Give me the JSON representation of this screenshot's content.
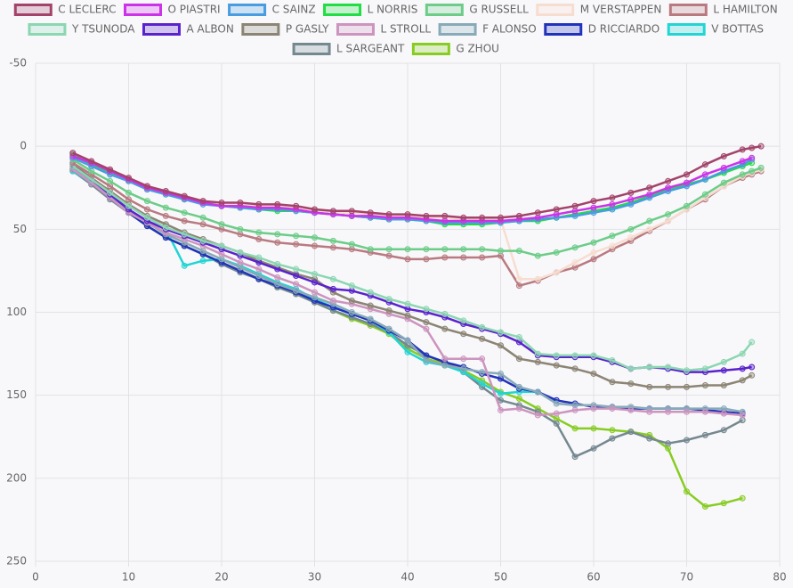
{
  "chart_data": {
    "type": "line",
    "x": [
      4,
      6,
      8,
      10,
      12,
      14,
      16,
      18,
      20,
      22,
      24,
      26,
      28,
      30,
      32,
      34,
      36,
      38,
      40,
      42,
      44,
      46,
      48,
      50,
      52,
      54,
      56,
      58,
      60,
      62,
      64,
      66,
      68,
      70,
      72,
      74,
      76,
      77,
      78
    ],
    "xlim": [
      0,
      80
    ],
    "xticks": [
      0,
      10,
      20,
      30,
      40,
      50,
      60,
      70,
      80
    ],
    "ylim": [
      250,
      -50
    ],
    "yticks": [
      -50,
      0,
      50,
      100,
      150,
      200,
      250
    ],
    "grid": true,
    "legend": "top",
    "series": [
      {
        "name": "C LECLERC",
        "color": "#a3436a",
        "values": [
          4,
          9,
          14,
          19,
          24,
          27,
          30,
          33,
          34,
          34,
          35,
          35,
          36,
          38,
          39,
          39,
          40,
          41,
          41,
          42,
          42,
          43,
          43,
          43,
          42,
          40,
          38,
          36,
          33,
          31,
          28,
          25,
          21,
          17,
          11,
          6,
          2,
          1,
          0
        ]
      },
      {
        "name": "O PIASTRI",
        "color": "#cc33e8",
        "values": [
          6,
          10,
          15,
          20,
          25,
          28,
          31,
          34,
          36,
          36,
          37,
          37,
          38,
          40,
          41,
          42,
          42,
          43,
          43,
          44,
          45,
          45,
          45,
          45,
          44,
          43,
          41,
          39,
          37,
          35,
          32,
          29,
          25,
          22,
          17,
          13,
          9,
          7,
          null
        ]
      },
      {
        "name": "C SAINZ",
        "color": "#4a9ce0",
        "values": [
          7,
          12,
          17,
          21,
          26,
          29,
          32,
          35,
          36,
          37,
          38,
          38,
          39,
          40,
          41,
          42,
          43,
          44,
          44,
          45,
          46,
          46,
          46,
          46,
          45,
          44,
          43,
          42,
          40,
          38,
          35,
          31,
          27,
          24,
          20,
          15,
          11,
          8,
          null
        ]
      },
      {
        "name": "L NORRIS",
        "color": "#22dd44",
        "values": [
          5,
          11,
          16,
          21,
          26,
          29,
          32,
          34,
          36,
          37,
          38,
          39,
          39,
          40,
          41,
          42,
          43,
          44,
          44,
          45,
          47,
          47,
          47,
          46,
          45,
          45,
          43,
          41,
          39,
          37,
          34,
          30,
          26,
          23,
          20,
          16,
          12,
          10,
          null
        ]
      },
      {
        "name": "G RUSSELL",
        "color": "#6ccc88",
        "values": [
          8,
          15,
          21,
          28,
          33,
          37,
          40,
          43,
          47,
          50,
          52,
          53,
          54,
          55,
          57,
          59,
          62,
          62,
          62,
          62,
          62,
          62,
          62,
          63,
          63,
          66,
          64,
          61,
          58,
          54,
          50,
          45,
          41,
          36,
          29,
          22,
          17,
          15,
          13
        ]
      },
      {
        "name": "M VERSTAPPEN",
        "color": "#f7ddd0",
        "values": [
          5,
          10,
          15,
          20,
          25,
          28,
          31,
          33,
          35,
          35,
          36,
          36,
          37,
          39,
          40,
          40,
          41,
          42,
          42,
          43,
          43,
          44,
          44,
          44,
          80,
          80,
          76,
          70,
          64,
          60,
          55,
          50,
          45,
          38,
          31,
          24,
          18,
          16,
          14
        ]
      },
      {
        "name": "L HAMILTON",
        "color": "#b87a80",
        "values": [
          10,
          17,
          24,
          32,
          38,
          42,
          45,
          47,
          50,
          53,
          56,
          58,
          59,
          60,
          61,
          62,
          64,
          66,
          68,
          68,
          67,
          67,
          67,
          66,
          84,
          81,
          76,
          73,
          68,
          62,
          57,
          51,
          45,
          38,
          32,
          24,
          19,
          17,
          15
        ]
      },
      {
        "name": "Y TSUNODA",
        "color": "#8cd6b2",
        "values": [
          12,
          20,
          28,
          36,
          43,
          49,
          53,
          57,
          60,
          64,
          67,
          71,
          74,
          77,
          80,
          84,
          88,
          92,
          95,
          98,
          101,
          105,
          109,
          112,
          115,
          125,
          126,
          126,
          126,
          129,
          134,
          133,
          133,
          135,
          134,
          130,
          125,
          118,
          null
        ]
      },
      {
        "name": "A ALBON",
        "color": "#5a22cc",
        "values": [
          12,
          20,
          29,
          38,
          45,
          50,
          54,
          58,
          62,
          66,
          70,
          74,
          78,
          82,
          86,
          87,
          90,
          94,
          98,
          100,
          103,
          107,
          110,
          113,
          118,
          126,
          127,
          127,
          127,
          130,
          134,
          133,
          134,
          136,
          136,
          135,
          134,
          133,
          null
        ]
      },
      {
        "name": "P GASLY",
        "color": "#8c8474",
        "values": [
          11,
          19,
          27,
          35,
          42,
          47,
          52,
          56,
          60,
          64,
          69,
          73,
          77,
          80,
          88,
          93,
          96,
          99,
          102,
          106,
          110,
          113,
          116,
          120,
          128,
          130,
          132,
          134,
          137,
          142,
          143,
          145,
          145,
          145,
          144,
          144,
          141,
          138,
          null
        ]
      },
      {
        "name": "L STROLL",
        "color": "#cc94be",
        "values": [
          14,
          22,
          31,
          40,
          46,
          52,
          56,
          60,
          65,
          70,
          74,
          79,
          83,
          88,
          93,
          95,
          98,
          101,
          104,
          110,
          128,
          128,
          128,
          159,
          158,
          162,
          161,
          159,
          158,
          158,
          159,
          160,
          160,
          160,
          160,
          161,
          162,
          null,
          null
        ]
      },
      {
        "name": "F ALONSO",
        "color": "#88aab8",
        "values": [
          13,
          21,
          30,
          39,
          46,
          53,
          58,
          63,
          68,
          73,
          78,
          83,
          87,
          91,
          95,
          100,
          104,
          110,
          117,
          129,
          132,
          134,
          136,
          137,
          145,
          148,
          155,
          156,
          156,
          157,
          157,
          158,
          158,
          158,
          158,
          158,
          160,
          null,
          null
        ]
      },
      {
        "name": "D RICCIARDO",
        "color": "#2233bb",
        "values": [
          14,
          22,
          31,
          40,
          48,
          55,
          60,
          65,
          70,
          75,
          80,
          84,
          88,
          93,
          97,
          101,
          105,
          111,
          117,
          126,
          130,
          133,
          137,
          140,
          146,
          148,
          153,
          155,
          157,
          157,
          158,
          158,
          158,
          158,
          159,
          160,
          161,
          null,
          null
        ]
      },
      {
        "name": "V BOTTAS",
        "color": "#22d4d4",
        "values": [
          15,
          22,
          31,
          40,
          45,
          50,
          72,
          69,
          68,
          72,
          77,
          82,
          86,
          92,
          97,
          101,
          105,
          112,
          124,
          130,
          132,
          136,
          143,
          149,
          148,
          148,
          null,
          null,
          null,
          null,
          null,
          null,
          null,
          null,
          null,
          null,
          null,
          null,
          null
        ]
      },
      {
        "name": "L SARGEANT",
        "color": "#74888f",
        "values": [
          15,
          23,
          32,
          40,
          48,
          55,
          60,
          65,
          71,
          76,
          80,
          85,
          89,
          94,
          99,
          103,
          107,
          112,
          120,
          126,
          130,
          136,
          145,
          153,
          156,
          160,
          167,
          187,
          182,
          176,
          172,
          176,
          179,
          177,
          174,
          171,
          165,
          null,
          null
        ]
      },
      {
        "name": "G ZHOU",
        "color": "#88cc22",
        "values": [
          14,
          22,
          31,
          40,
          48,
          55,
          60,
          65,
          70,
          75,
          80,
          85,
          89,
          94,
          99,
          104,
          108,
          113,
          122,
          128,
          131,
          135,
          141,
          148,
          152,
          158,
          164,
          170,
          170,
          171,
          172,
          174,
          182,
          208,
          217,
          215,
          212,
          null,
          null
        ]
      }
    ]
  }
}
